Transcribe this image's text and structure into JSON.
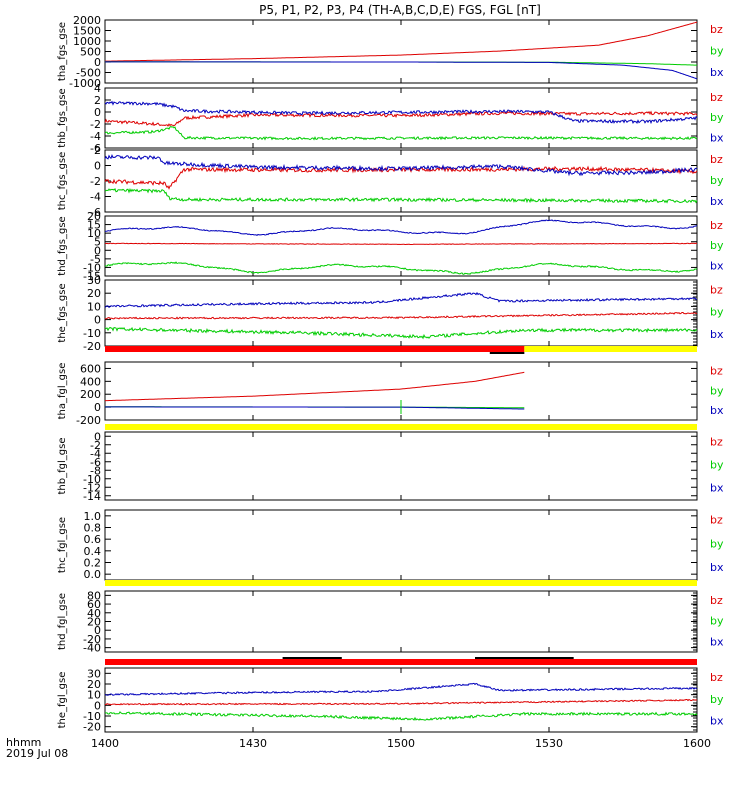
{
  "chart_data": {
    "type": "line",
    "title": "P5, P1, P2, P3, P4 (TH-A,B,C,D,E) FGS, FGL [nT]",
    "x_axis": {
      "label_line1": "hhmm",
      "label_line2": "2019 Jul 08",
      "range_min": [
        840,
        960
      ],
      "ticks": [
        {
          "label": "1400",
          "min": 840
        },
        {
          "label": "1430",
          "min": 870
        },
        {
          "label": "1500",
          "min": 900
        },
        {
          "label": "1530",
          "min": 930
        },
        {
          "label": "1600",
          "min": 960
        }
      ]
    },
    "legend": {
      "bz": "bz",
      "by": "by",
      "bx": "bx"
    },
    "colors": {
      "bz": "#dd0000",
      "by": "#00cc00",
      "bx": "#0000bb",
      "axis": "#000000",
      "bar_red": "#ff0000",
      "bar_yellow": "#ffff00",
      "bar_black": "#000000"
    },
    "panels": [
      {
        "ylabel": "tha_fgs_gse",
        "ylim": [
          -1000,
          2000
        ],
        "ticks": [
          -1000,
          -500,
          0,
          500,
          1000,
          1500,
          2000
        ],
        "series": [
          {
            "name": "bz",
            "noise": 0,
            "points": [
              [
                840,
                40
              ],
              [
                870,
                160
              ],
              [
                900,
                330
              ],
              [
                920,
                520
              ],
              [
                940,
                800
              ],
              [
                950,
                1250
              ],
              [
                960,
                1900
              ]
            ]
          },
          {
            "name": "by",
            "noise": 0,
            "points": [
              [
                840,
                10
              ],
              [
                900,
                0
              ],
              [
                930,
                -10
              ],
              [
                950,
                -80
              ],
              [
                960,
                -150
              ]
            ]
          },
          {
            "name": "bx",
            "noise": 0,
            "points": [
              [
                840,
                5
              ],
              [
                900,
                0
              ],
              [
                930,
                -20
              ],
              [
                945,
                -150
              ],
              [
                955,
                -400
              ],
              [
                960,
                -800
              ]
            ]
          }
        ],
        "bars": [],
        "right_ticks": false
      },
      {
        "ylabel": "thb_fgs_gse",
        "ylim": [
          -6,
          4
        ],
        "ticks": [
          -6,
          -4,
          -2,
          0,
          2,
          4
        ],
        "series": [
          {
            "name": "bz",
            "noise": 0.25,
            "points": [
              [
                840,
                -1.5
              ],
              [
                850,
                -2.0
              ],
              [
                854,
                -2.3
              ],
              [
                856,
                -1.0
              ],
              [
                870,
                -0.5
              ],
              [
                900,
                -0.6
              ],
              [
                920,
                -0.2
              ],
              [
                935,
                -0.3
              ],
              [
                950,
                -0.2
              ],
              [
                960,
                -0.3
              ]
            ]
          },
          {
            "name": "by",
            "noise": 0.2,
            "points": [
              [
                840,
                -3.5
              ],
              [
                850,
                -3.3
              ],
              [
                854,
                -2.5
              ],
              [
                856,
                -4.3
              ],
              [
                880,
                -4.4
              ],
              [
                920,
                -4.3
              ],
              [
                960,
                -4.4
              ]
            ]
          },
          {
            "name": "bx",
            "noise": 0.25,
            "points": [
              [
                840,
                1.5
              ],
              [
                850,
                1.4
              ],
              [
                854,
                0.9
              ],
              [
                856,
                0.2
              ],
              [
                880,
                -0.2
              ],
              [
                920,
                0.1
              ],
              [
                930,
                0.0
              ],
              [
                935,
                -1.5
              ],
              [
                950,
                -1.6
              ],
              [
                960,
                -1.0
              ]
            ]
          }
        ],
        "bars": [],
        "right_ticks": false
      },
      {
        "ylabel": "thc_fgs_gse",
        "ylim": [
          -6,
          2
        ],
        "ticks": [
          -6,
          -4,
          -2,
          0,
          2
        ],
        "series": [
          {
            "name": "bz",
            "noise": 0.25,
            "points": [
              [
                840,
                -2.0
              ],
              [
                852,
                -2.3
              ],
              [
                853,
                -3.0
              ],
              [
                856,
                -0.5
              ],
              [
                880,
                -0.6
              ],
              [
                920,
                -0.5
              ],
              [
                935,
                -0.4
              ],
              [
                950,
                -0.6
              ],
              [
                960,
                -0.8
              ]
            ]
          },
          {
            "name": "by",
            "noise": 0.2,
            "points": [
              [
                840,
                -3.2
              ],
              [
                852,
                -3.3
              ],
              [
                853,
                -4.2
              ],
              [
                856,
                -4.4
              ],
              [
                900,
                -4.4
              ],
              [
                960,
                -4.6
              ]
            ]
          },
          {
            "name": "bx",
            "noise": 0.25,
            "points": [
              [
                840,
                1.1
              ],
              [
                851,
                1.0
              ],
              [
                852,
                0.3
              ],
              [
                870,
                -0.2
              ],
              [
                900,
                -0.4
              ],
              [
                920,
                -0.1
              ],
              [
                935,
                -1.0
              ],
              [
                950,
                -0.9
              ],
              [
                960,
                -0.5
              ]
            ]
          }
        ],
        "bars": [],
        "right_ticks": false
      },
      {
        "ylabel": "thd_fgs_gse",
        "ylim": [
          -15,
          20
        ],
        "ticks": [
          -15,
          -10,
          -5,
          0,
          5,
          10,
          15,
          20
        ],
        "series": [
          {
            "name": "bz",
            "noise": 0.15,
            "points": [
              [
                840,
                4
              ],
              [
                900,
                3.5
              ],
              [
                960,
                4
              ]
            ]
          },
          {
            "name": "by",
            "noise": 0.4,
            "wavy": 3,
            "points": [
              [
                840,
                -9
              ],
              [
                900,
                -11
              ],
              [
                960,
                -10
              ]
            ]
          },
          {
            "name": "bx",
            "noise": 0.3,
            "wavy": 3,
            "points": [
              [
                840,
                11
              ],
              [
                870,
                12
              ],
              [
                900,
                10
              ],
              [
                920,
                14
              ],
              [
                940,
                15.5
              ],
              [
                960,
                15
              ]
            ]
          }
        ],
        "bars": [],
        "right_ticks": false
      },
      {
        "ylabel": "the_fgs_gse",
        "ylim": [
          -20,
          30
        ],
        "ticks": [
          -20,
          -10,
          0,
          10,
          20,
          30
        ],
        "series": [
          {
            "name": "bz",
            "noise": 0.6,
            "points": [
              [
                840,
                1
              ],
              [
                900,
                1.5
              ],
              [
                960,
                5
              ]
            ]
          },
          {
            "name": "by",
            "noise": 1.2,
            "points": [
              [
                840,
                -7
              ],
              [
                880,
                -10
              ],
              [
                905,
                -13
              ],
              [
                925,
                -8
              ],
              [
                960,
                -8
              ]
            ]
          },
          {
            "name": "bx",
            "noise": 0.8,
            "points": [
              [
                840,
                10
              ],
              [
                870,
                12
              ],
              [
                895,
                13
              ],
              [
                915,
                20
              ],
              [
                920,
                14
              ],
              [
                940,
                15
              ],
              [
                960,
                16
              ]
            ]
          }
        ],
        "bars": [],
        "right_ticks": true
      },
      {
        "ylabel": "tha_fgl_gse",
        "ylim": [
          -200,
          700
        ],
        "ticks": [
          -200,
          0,
          200,
          400,
          600
        ],
        "series": [
          {
            "name": "bz",
            "noise": 0,
            "points": [
              [
                840,
                100
              ],
              [
                870,
                170
              ],
              [
                900,
                280
              ],
              [
                915,
                400
              ],
              [
                925,
                540
              ]
            ]
          },
          {
            "name": "by",
            "noise": 0,
            "points": [
              [
                840,
                5
              ],
              [
                900,
                0
              ],
              [
                925,
                -10
              ]
            ]
          },
          {
            "name": "bx",
            "noise": 0,
            "points": [
              [
                840,
                3
              ],
              [
                900,
                0
              ],
              [
                925,
                -30
              ]
            ]
          }
        ],
        "bars": [
          {
            "color": "bar_red",
            "from": 840,
            "to": 925
          },
          {
            "color": "bar_yellow",
            "from": 925,
            "to": 960
          }
        ],
        "black_segments": [
          [
            918,
            925
          ]
        ],
        "right_ticks": false
      },
      {
        "ylabel": "thb_fgl_gse",
        "ylim": [
          -15,
          1
        ],
        "ticks": [
          -14,
          -12,
          -10,
          -8,
          -6,
          -4,
          -2,
          0
        ],
        "series": [],
        "bars": [
          {
            "color": "bar_yellow",
            "from": 840,
            "to": 960
          }
        ],
        "right_ticks": false
      },
      {
        "ylabel": "thc_fgl_gse",
        "ylim": [
          -0.1,
          1.1
        ],
        "ticks": [
          0.0,
          0.2,
          0.4,
          0.6,
          0.8,
          1.0
        ],
        "series": [],
        "bars": [],
        "right_ticks": false
      },
      {
        "ylabel": "thd_fgl_gse",
        "ylim": [
          -50,
          90
        ],
        "ticks": [
          -40,
          -20,
          0,
          20,
          40,
          60,
          80
        ],
        "series": [],
        "bars": [
          {
            "color": "bar_yellow",
            "from": 840,
            "to": 960
          }
        ],
        "right_ticks": true
      },
      {
        "ylabel": "the_fgl_gse",
        "ylim": [
          -25,
          35
        ],
        "ticks": [
          -20,
          -10,
          0,
          10,
          20,
          30
        ],
        "series": [
          {
            "name": "bz",
            "noise": 0.6,
            "points": [
              [
                840,
                1
              ],
              [
                900,
                1.5
              ],
              [
                960,
                5
              ]
            ]
          },
          {
            "name": "by",
            "noise": 1.2,
            "points": [
              [
                840,
                -7
              ],
              [
                880,
                -10
              ],
              [
                905,
                -13
              ],
              [
                925,
                -8
              ],
              [
                960,
                -8
              ]
            ]
          },
          {
            "name": "bx",
            "noise": 0.8,
            "points": [
              [
                840,
                10
              ],
              [
                870,
                12
              ],
              [
                895,
                13
              ],
              [
                915,
                20
              ],
              [
                920,
                14
              ],
              [
                940,
                15
              ],
              [
                960,
                16
              ]
            ]
          }
        ],
        "bars": [
          {
            "color": "bar_red",
            "from": 840,
            "to": 960
          }
        ],
        "black_segments": [
          [
            876,
            888
          ],
          [
            915,
            935
          ]
        ],
        "right_ticks": true
      }
    ]
  }
}
